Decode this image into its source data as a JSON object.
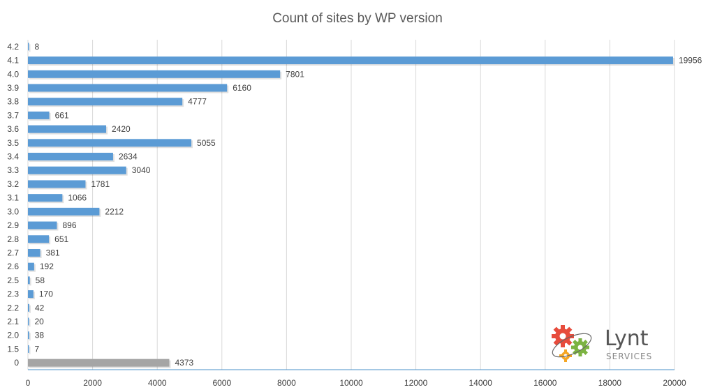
{
  "chart_data": {
    "type": "bar",
    "orientation": "horizontal",
    "title": "Count of sites by WP version",
    "xlabel": "",
    "ylabel": "",
    "xlim": [
      0,
      20000
    ],
    "x_ticks": [
      "0",
      "2000",
      "4000",
      "6000",
      "8000",
      "10000",
      "12000",
      "14000",
      "16000",
      "18000",
      "20000"
    ],
    "grid": "vertical",
    "legend": "none",
    "categories": [
      "4.2",
      "4.1",
      "4.0",
      "3.9",
      "3.8",
      "3.7",
      "3.6",
      "3.5",
      "3.4",
      "3.3",
      "3.2",
      "3.1",
      "3.0",
      "2.9",
      "2.8",
      "2.7",
      "2.6",
      "2.5",
      "2.3",
      "2.2",
      "2.1",
      "2.0",
      "1.5",
      "0"
    ],
    "values": [
      8,
      19956,
      7801,
      6160,
      4777,
      661,
      2420,
      5055,
      2634,
      3040,
      1781,
      1066,
      2212,
      896,
      651,
      381,
      192,
      58,
      170,
      42,
      20,
      38,
      7,
      4373
    ],
    "colors": {
      "bar": "#5b9bd5",
      "highlight": "#a5a5a5",
      "grid": "#d9d9d9",
      "axis": "#4a90c8",
      "label": "#404040"
    },
    "highlight_category": "0"
  },
  "logo": {
    "brand": "Lynt",
    "sub": "SERVICES"
  }
}
